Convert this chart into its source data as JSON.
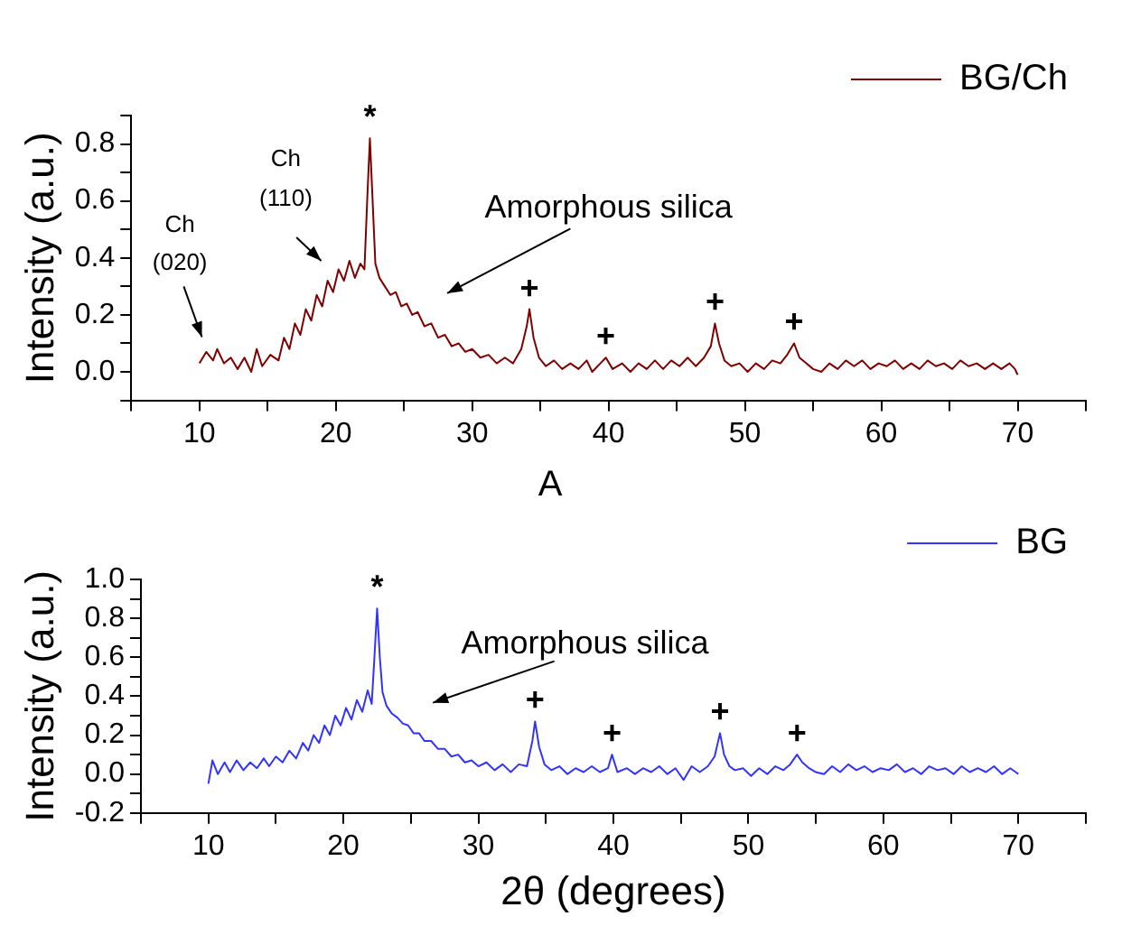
{
  "chart_data": [
    {
      "type": "line",
      "ylabel": "Intensity (a.u.)",
      "xlim": [
        5,
        75
      ],
      "xticks": [
        {
          "value": 5,
          "label": null
        },
        10,
        {
          "value": 15,
          "label": null
        },
        20,
        {
          "value": 25,
          "label": null
        },
        30,
        {
          "value": 35,
          "label": null
        },
        40,
        {
          "value": 45,
          "label": null
        },
        50,
        {
          "value": 55,
          "label": null
        },
        60,
        {
          "value": 65,
          "label": null
        },
        70,
        {
          "value": 75,
          "label": null
        }
      ],
      "ylim": [
        -0.1,
        0.9
      ],
      "yticks": [
        {
          "value": -0.1,
          "label": null
        },
        {
          "value": 0,
          "label": "0.0"
        },
        {
          "value": 0.1,
          "label": null
        },
        0.2,
        {
          "value": 0.3,
          "label": null
        },
        0.4,
        {
          "value": 0.5,
          "label": null
        },
        0.6,
        {
          "value": 0.7,
          "label": null
        },
        0.8,
        {
          "value": 0.9,
          "label": null
        }
      ],
      "grid": false,
      "legend": "top right",
      "marker": "none",
      "line_style": "solid",
      "x": [
        10.0,
        10.5,
        11.0,
        11.3,
        11.8,
        12.3,
        12.8,
        13.3,
        13.8,
        14.2,
        14.6,
        15.2,
        15.8,
        16.2,
        16.6,
        17.0,
        17.4,
        17.8,
        18.2,
        18.6,
        19.0,
        19.4,
        19.8,
        20.2,
        20.6,
        21.0,
        21.4,
        21.8,
        22.1,
        22.3,
        22.5,
        22.7,
        22.9,
        23.2,
        23.6,
        24.0,
        24.4,
        24.8,
        25.2,
        25.6,
        26.0,
        26.5,
        27.0,
        27.5,
        28.0,
        28.5,
        29.0,
        29.5,
        30.0,
        30.6,
        31.2,
        31.8,
        32.4,
        33.0,
        33.6,
        34.0,
        34.2,
        34.5,
        34.9,
        35.4,
        36.0,
        36.6,
        37.2,
        37.8,
        38.4,
        38.8,
        39.4,
        39.8,
        40.3,
        41.0,
        41.6,
        42.2,
        42.8,
        43.4,
        44.0,
        44.6,
        45.2,
        45.8,
        46.4,
        47.0,
        47.5,
        47.8,
        48.1,
        48.5,
        49.0,
        49.6,
        50.2,
        50.8,
        51.4,
        52.0,
        52.6,
        53.1,
        53.6,
        54.0,
        54.5,
        55.0,
        55.6,
        56.2,
        56.8,
        57.4,
        58.0,
        58.6,
        59.2,
        59.8,
        60.4,
        61.0,
        61.6,
        62.2,
        62.8,
        63.4,
        64.0,
        64.6,
        65.2,
        65.8,
        66.4,
        67.0,
        67.6,
        68.2,
        68.8,
        69.4,
        69.8,
        70.0
      ],
      "series": [
        {
          "name": "BG/Ch",
          "color": "#800000",
          "values": [
            0.03,
            0.07,
            0.04,
            0.08,
            0.03,
            0.05,
            0.01,
            0.05,
            0.0,
            0.08,
            0.02,
            0.06,
            0.04,
            0.12,
            0.08,
            0.17,
            0.13,
            0.22,
            0.18,
            0.27,
            0.23,
            0.32,
            0.28,
            0.36,
            0.32,
            0.39,
            0.33,
            0.38,
            0.36,
            0.6,
            0.82,
            0.6,
            0.38,
            0.33,
            0.3,
            0.27,
            0.28,
            0.23,
            0.24,
            0.2,
            0.21,
            0.16,
            0.17,
            0.12,
            0.13,
            0.09,
            0.1,
            0.07,
            0.08,
            0.05,
            0.06,
            0.03,
            0.05,
            0.03,
            0.08,
            0.16,
            0.22,
            0.12,
            0.05,
            0.02,
            0.04,
            0.01,
            0.03,
            0.01,
            0.04,
            0.0,
            0.03,
            0.05,
            0.01,
            0.03,
            0.0,
            0.03,
            0.01,
            0.04,
            0.01,
            0.04,
            0.02,
            0.05,
            0.02,
            0.05,
            0.09,
            0.17,
            0.1,
            0.04,
            0.02,
            0.03,
            0.0,
            0.03,
            0.01,
            0.04,
            0.03,
            0.06,
            0.1,
            0.05,
            0.03,
            0.01,
            0.0,
            0.03,
            0.01,
            0.04,
            0.02,
            0.04,
            0.01,
            0.03,
            0.02,
            0.04,
            0.01,
            0.03,
            0.01,
            0.04,
            0.02,
            0.03,
            0.01,
            0.04,
            0.02,
            0.03,
            0.01,
            0.03,
            0.01,
            0.03,
            0.01,
            -0.01
          ]
        }
      ],
      "annotations": [
        "Ch\n(020)",
        "Ch\n(110)",
        "Amorphous silica",
        {
          "text": "*",
          "x": 22.5,
          "y": 0.82
        },
        {
          "text": "+",
          "x": 34.2,
          "y": 0.22
        },
        {
          "text": "+",
          "x": 39.8,
          "y": 0.05
        },
        {
          "text": "+",
          "x": 47.8,
          "y": 0.17
        },
        {
          "text": "+",
          "x": 53.6,
          "y": 0.1
        }
      ]
    },
    {
      "type": "line",
      "title": "A",
      "xlabel": "2θ (degrees)",
      "ylabel": "Intensity (a.u.)",
      "xlim": [
        5,
        75
      ],
      "xticks": [
        {
          "value": 5,
          "label": null
        },
        10,
        {
          "value": 15,
          "label": null
        },
        20,
        {
          "value": 25,
          "label": null
        },
        30,
        {
          "value": 35,
          "label": null
        },
        40,
        {
          "value": 45,
          "label": null
        },
        50,
        {
          "value": 55,
          "label": null
        },
        60,
        {
          "value": 65,
          "label": null
        },
        70,
        {
          "value": 75,
          "label": null
        }
      ],
      "ylim": [
        -0.2,
        1.0
      ],
      "yticks": [
        -0.2,
        {
          "value": -0.1,
          "label": null
        },
        {
          "value": 0,
          "label": "0.0"
        },
        {
          "value": 0.1,
          "label": null
        },
        0.2,
        {
          "value": 0.3,
          "label": null
        },
        0.4,
        {
          "value": 0.5,
          "label": null
        },
        0.6,
        {
          "value": 0.7,
          "label": null
        },
        0.8,
        {
          "value": 0.9,
          "label": null
        },
        {
          "value": 1,
          "label": "1.0"
        }
      ],
      "grid": false,
      "legend": "top right",
      "marker": "none",
      "line_style": "solid",
      "x": [
        10.0,
        10.3,
        10.7,
        11.2,
        11.6,
        12.1,
        12.6,
        13.1,
        13.6,
        14.1,
        14.5,
        15.0,
        15.5,
        16.0,
        16.5,
        17.0,
        17.4,
        17.8,
        18.2,
        18.6,
        19.0,
        19.4,
        19.8,
        20.2,
        20.6,
        21.0,
        21.4,
        21.8,
        22.1,
        22.3,
        22.5,
        22.7,
        22.9,
        23.2,
        23.6,
        24.0,
        24.4,
        24.8,
        25.2,
        25.6,
        26.0,
        26.5,
        27.0,
        27.5,
        28.0,
        28.5,
        29.0,
        29.5,
        30.0,
        30.6,
        31.2,
        31.8,
        32.4,
        33.0,
        33.6,
        34.0,
        34.2,
        34.5,
        34.9,
        35.4,
        36.0,
        36.6,
        37.2,
        37.8,
        38.4,
        39.0,
        39.6,
        39.9,
        40.3,
        41.0,
        41.6,
        42.2,
        42.8,
        43.4,
        44.0,
        44.6,
        45.2,
        45.8,
        46.4,
        47.0,
        47.5,
        47.9,
        48.2,
        48.6,
        49.0,
        49.6,
        50.2,
        50.8,
        51.4,
        52.0,
        52.6,
        53.1,
        53.6,
        54.0,
        54.5,
        55.0,
        55.6,
        56.2,
        56.8,
        57.4,
        58.0,
        58.6,
        59.2,
        59.8,
        60.4,
        61.0,
        61.6,
        62.2,
        62.8,
        63.4,
        64.0,
        64.6,
        65.2,
        65.8,
        66.4,
        67.0,
        67.6,
        68.2,
        68.8,
        69.4,
        69.8,
        70.0
      ],
      "series": [
        {
          "name": "BG",
          "color": "#3333ff",
          "values": [
            -0.05,
            0.07,
            0.0,
            0.06,
            0.01,
            0.07,
            0.02,
            0.06,
            0.03,
            0.08,
            0.04,
            0.09,
            0.06,
            0.12,
            0.08,
            0.16,
            0.12,
            0.2,
            0.16,
            0.25,
            0.2,
            0.3,
            0.25,
            0.34,
            0.28,
            0.38,
            0.32,
            0.43,
            0.36,
            0.6,
            0.85,
            0.6,
            0.42,
            0.35,
            0.31,
            0.29,
            0.26,
            0.25,
            0.21,
            0.21,
            0.17,
            0.17,
            0.13,
            0.13,
            0.09,
            0.1,
            0.06,
            0.07,
            0.04,
            0.06,
            0.02,
            0.05,
            0.01,
            0.05,
            0.04,
            0.17,
            0.27,
            0.14,
            0.05,
            0.02,
            0.04,
            0.0,
            0.03,
            0.01,
            0.04,
            0.01,
            0.03,
            0.1,
            0.01,
            0.03,
            0.0,
            0.03,
            0.01,
            0.04,
            0.0,
            0.03,
            -0.03,
            0.04,
            0.01,
            0.04,
            0.09,
            0.21,
            0.1,
            0.04,
            0.02,
            0.03,
            -0.01,
            0.03,
            0.0,
            0.04,
            0.02,
            0.05,
            0.1,
            0.06,
            0.03,
            0.01,
            0.0,
            0.04,
            0.01,
            0.05,
            0.02,
            0.04,
            0.01,
            0.03,
            0.02,
            0.05,
            0.01,
            0.03,
            0.0,
            0.04,
            0.02,
            0.03,
            0.0,
            0.04,
            0.01,
            0.03,
            0.01,
            0.04,
            0.0,
            0.03,
            0.01,
            0.0
          ]
        }
      ],
      "annotations": [
        "Amorphous silica",
        {
          "text": "*",
          "x": 22.5,
          "y": 0.85
        },
        {
          "text": "+",
          "x": 34.2,
          "y": 0.27
        },
        {
          "text": "+",
          "x": 39.9,
          "y": 0.1
        },
        {
          "text": "+",
          "x": 47.9,
          "y": 0.21
        },
        {
          "text": "+",
          "x": 53.6,
          "y": 0.1
        }
      ]
    }
  ]
}
